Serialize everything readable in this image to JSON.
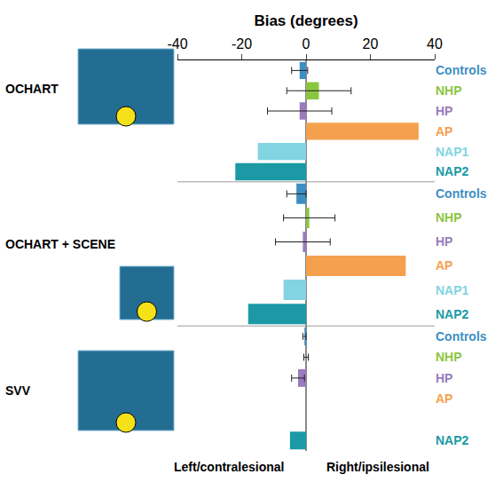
{
  "chart_data": [
    {
      "type": "bar",
      "orientation": "horizontal",
      "title": "OCHART",
      "xlabel": "Bias (degrees)",
      "categories": [
        "Controls",
        "NHP",
        "HP",
        "AP",
        "NAP1",
        "NAP2"
      ],
      "values": [
        -2,
        4,
        -2,
        35,
        -15,
        -22
      ],
      "errors": [
        2.5,
        10,
        10,
        null,
        null,
        null
      ],
      "colors": [
        "#3d8ec3",
        "#8cc63f",
        "#9a7bbd",
        "#f5a04e",
        "#82d4e2",
        "#1b9aa6"
      ],
      "xlim": [
        -40,
        40
      ],
      "xticks": [
        -40,
        -20,
        0,
        20,
        40
      ]
    },
    {
      "type": "bar",
      "orientation": "horizontal",
      "title": "OCHART + SCENE",
      "tick_labels": "y",
      "categories": [
        "Controls",
        "NHP",
        "HP",
        "AP",
        "NAP1",
        "NAP2"
      ],
      "values": [
        -3,
        1,
        -1,
        31,
        -7,
        -18
      ],
      "errors": [
        3,
        8,
        8.5,
        null,
        null,
        null
      ],
      "colors": [
        "#3d8ec3",
        "#8cc63f",
        "#9a7bbd",
        "#f5a04e",
        "#82d4e2",
        "#1b9aa6"
      ],
      "xlim": [
        -40,
        40
      ],
      "xticks": [
        -40,
        -20,
        0,
        20,
        40
      ]
    },
    {
      "type": "bar",
      "orientation": "horizontal",
      "title": "SVV",
      "tick_labels": "y",
      "categories": [
        "Controls",
        "NHP",
        "HP",
        "AP",
        null,
        "NAP2"
      ],
      "values": [
        -0.5,
        0,
        -2.5,
        null,
        null,
        -5
      ],
      "errors": [
        0.5,
        0.7,
        2,
        null,
        null,
        null
      ],
      "colors": [
        "#3d8ec3",
        "#8cc63f",
        "#9a7bbd",
        "#f5a04e",
        null,
        "#1b9aa6"
      ],
      "xlim": [
        -40,
        40
      ],
      "xticks": [
        -40,
        -20,
        0,
        20,
        40
      ],
      "annotations": [
        "Left/contralesional",
        "Right/ipsilesional"
      ]
    }
  ]
}
